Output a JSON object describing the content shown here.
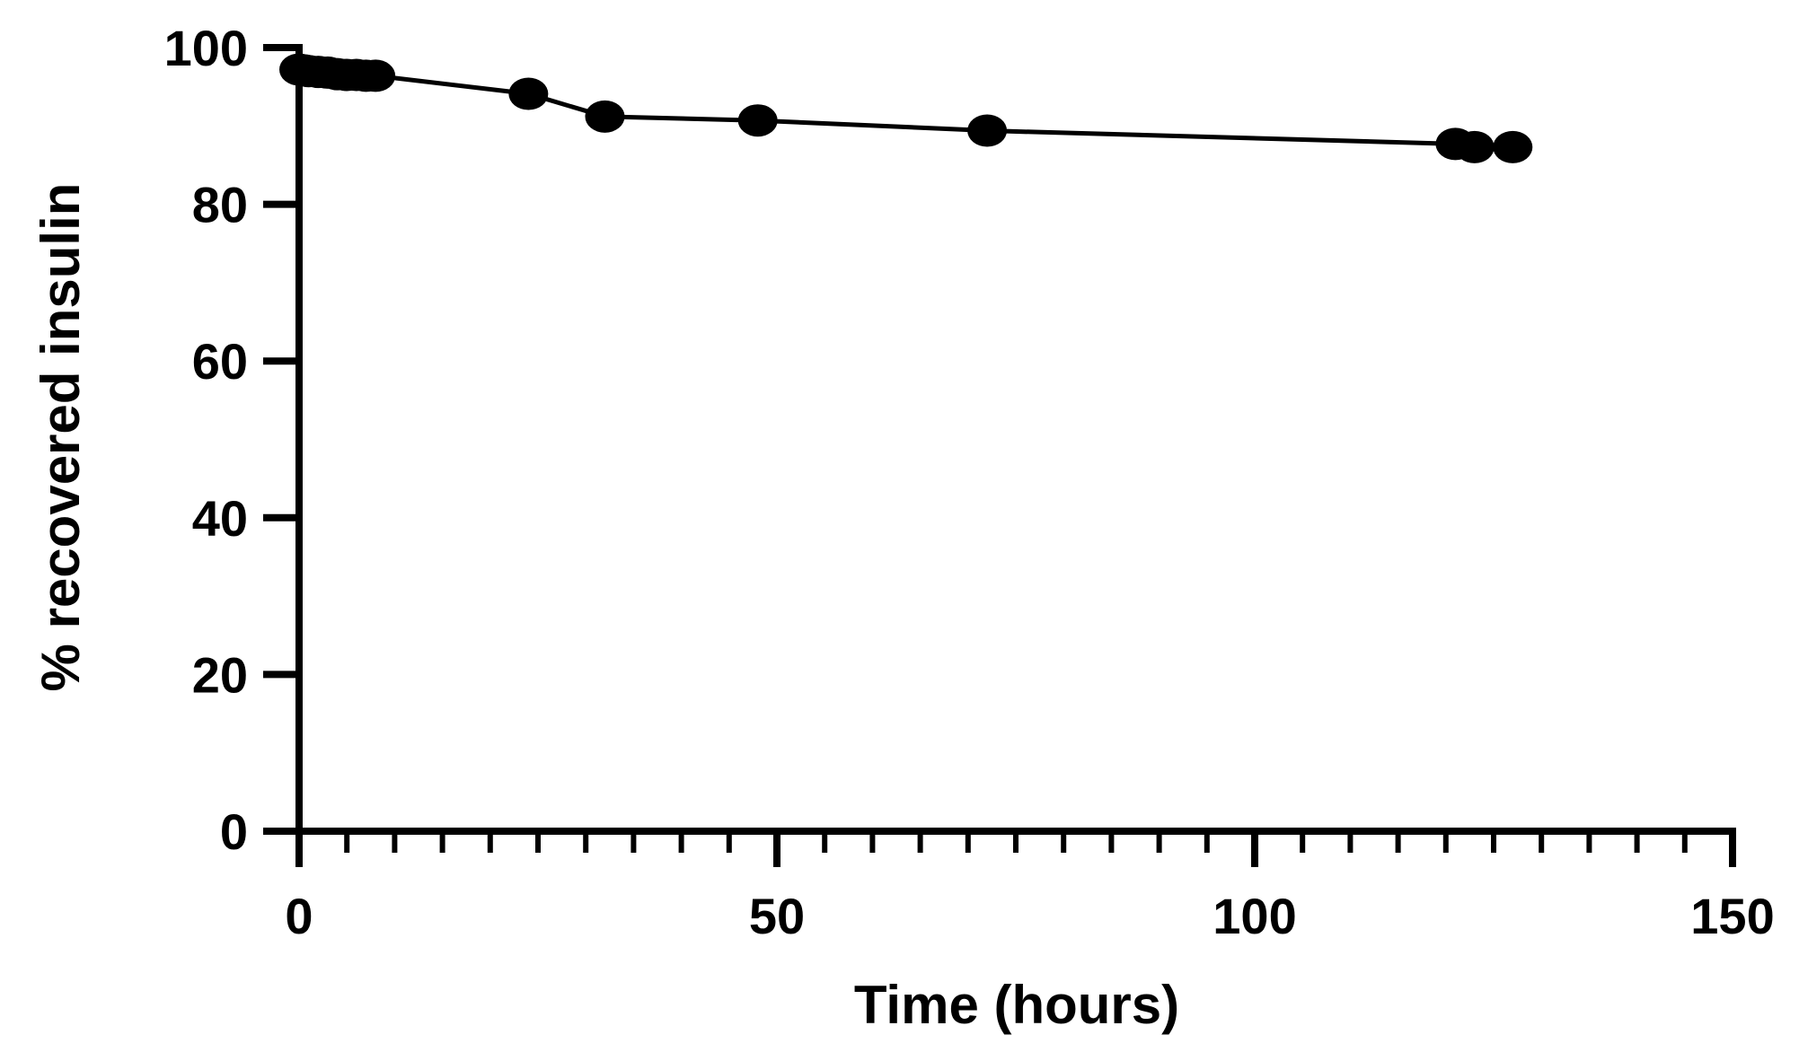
{
  "chart_data": {
    "type": "line",
    "title": "",
    "xlabel": "Time (hours)",
    "ylabel": "% recovered insulin",
    "xlim": [
      0,
      150
    ],
    "ylim": [
      0,
      100
    ],
    "x_ticks": [
      0,
      50,
      100,
      150
    ],
    "y_ticks": [
      0,
      20,
      40,
      60,
      80,
      100
    ],
    "x_minor_step": 5,
    "grid": false,
    "legend": "none",
    "color": "#000000",
    "marker": "filled-circle",
    "series": [
      {
        "x": [
          0,
          0.5,
          1,
          2,
          3,
          4,
          5,
          6,
          7,
          8,
          24,
          32,
          48,
          72,
          121,
          123,
          127
        ],
        "y": [
          97.2,
          97.1,
          97.0,
          96.9,
          96.8,
          96.6,
          96.5,
          96.5,
          96.4,
          96.4,
          94.1,
          91.2,
          90.7,
          89.4,
          87.7,
          87.3,
          87.3
        ]
      }
    ]
  }
}
